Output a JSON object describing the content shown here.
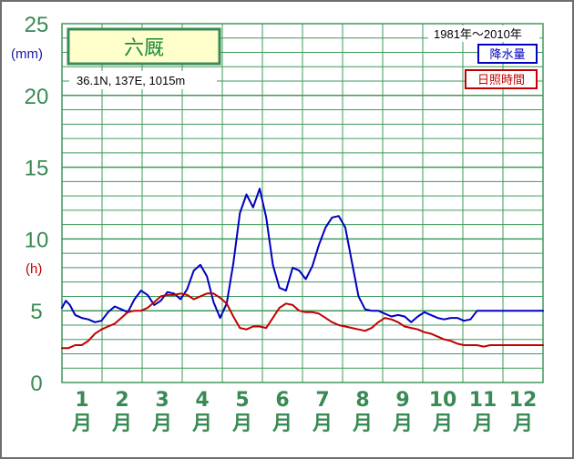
{
  "chart_data": {
    "type": "line",
    "title": "六厩",
    "station_info": "36.1N,  137E,  1015m",
    "period": "1981年〜2010年",
    "y_unit_precip": "(mm)",
    "y_unit_sun": "(h)",
    "ylim": [
      0,
      25
    ],
    "yticks": [
      "0",
      "5",
      "10",
      "15",
      "20",
      "25"
    ],
    "categories": [
      "1\n月",
      "2\n月",
      "3\n月",
      "4\n月",
      "5\n月",
      "6\n月",
      "7\n月",
      "8\n月",
      "9\n月",
      "10\n月",
      "11\n月",
      "12\n月"
    ],
    "month_numbers": [
      "1",
      "2",
      "3",
      "4",
      "5",
      "6",
      "7",
      "8",
      "9",
      "10",
      "11",
      "12"
    ],
    "month_suffix": "月",
    "series": [
      {
        "name": "降水量",
        "color": "#0000c0",
        "x": [
          0,
          3,
          6,
          10,
          15,
          20,
          25,
          30,
          35,
          40,
          45,
          50,
          55,
          60,
          65,
          70,
          75,
          80,
          85,
          90,
          95,
          100,
          105,
          110,
          115,
          120,
          125,
          130,
          135,
          140,
          145,
          150,
          155,
          160,
          165,
          170,
          175,
          180,
          185,
          190,
          195,
          200,
          205,
          210,
          215,
          220,
          225,
          230,
          235,
          240,
          245,
          250,
          255,
          260,
          265,
          270,
          275,
          280,
          285,
          290,
          295,
          300,
          305,
          310,
          315,
          320,
          325,
          330,
          335,
          340,
          345,
          350,
          355,
          360,
          365
        ],
        "values": [
          5.2,
          5.7,
          5.4,
          4.7,
          4.5,
          4.4,
          4.2,
          4.3,
          4.9,
          5.3,
          5.1,
          4.9,
          5.8,
          6.4,
          6.1,
          5.4,
          5.7,
          6.3,
          6.2,
          5.8,
          6.5,
          7.8,
          8.2,
          7.4,
          5.6,
          4.5,
          5.5,
          8.3,
          11.8,
          13.1,
          12.2,
          13.5,
          11.5,
          8.2,
          6.6,
          6.4,
          8.0,
          7.8,
          7.2,
          8.1,
          9.6,
          10.8,
          11.5,
          11.6,
          10.8,
          8.4,
          6.0,
          5.1,
          5.0,
          5.0,
          4.8,
          4.6,
          4.7,
          4.6,
          4.2,
          4.6,
          4.9,
          4.7,
          4.5,
          4.4,
          4.5,
          4.5,
          4.3,
          4.4,
          5.0,
          5.0,
          5.0,
          5.0,
          5.0,
          5.0,
          5.0,
          5.0,
          5.0,
          5.0,
          5.0
        ]
      },
      {
        "name": "日照時間",
        "color": "#c00000",
        "x": [
          0,
          5,
          10,
          15,
          20,
          25,
          30,
          35,
          40,
          45,
          50,
          55,
          60,
          65,
          70,
          75,
          80,
          85,
          90,
          95,
          100,
          105,
          110,
          115,
          120,
          125,
          130,
          135,
          140,
          145,
          150,
          155,
          160,
          165,
          170,
          175,
          180,
          185,
          190,
          195,
          200,
          205,
          210,
          215,
          220,
          225,
          230,
          235,
          240,
          245,
          250,
          255,
          260,
          265,
          270,
          275,
          280,
          285,
          290,
          295,
          300,
          305,
          310,
          315,
          320,
          325,
          330,
          335,
          340,
          345,
          350,
          355,
          360,
          365
        ],
        "values": [
          2.4,
          2.4,
          2.6,
          2.6,
          2.9,
          3.4,
          3.7,
          3.9,
          4.1,
          4.5,
          4.9,
          5.0,
          5.0,
          5.2,
          5.6,
          6.0,
          6.1,
          6.1,
          6.2,
          6.1,
          5.8,
          6.0,
          6.2,
          6.2,
          5.9,
          5.5,
          4.6,
          3.8,
          3.7,
          3.9,
          3.9,
          3.8,
          4.5,
          5.2,
          5.5,
          5.4,
          5.0,
          4.9,
          4.9,
          4.8,
          4.5,
          4.2,
          4.0,
          3.9,
          3.8,
          3.7,
          3.6,
          3.8,
          4.2,
          4.5,
          4.4,
          4.2,
          3.9,
          3.8,
          3.7,
          3.5,
          3.4,
          3.2,
          3.0,
          2.9,
          2.7,
          2.6,
          2.6,
          2.6,
          2.5,
          2.6,
          2.6,
          2.6,
          2.6,
          2.6,
          2.6,
          2.6,
          2.6,
          2.6
        ]
      }
    ],
    "grid": true,
    "legend": "top-right"
  },
  "colors": {
    "grid": "#3f9a5a",
    "axis_label": "#3a8a55",
    "title_box_bg": "#ffffcc",
    "title_box_border": "#3a8a55"
  }
}
